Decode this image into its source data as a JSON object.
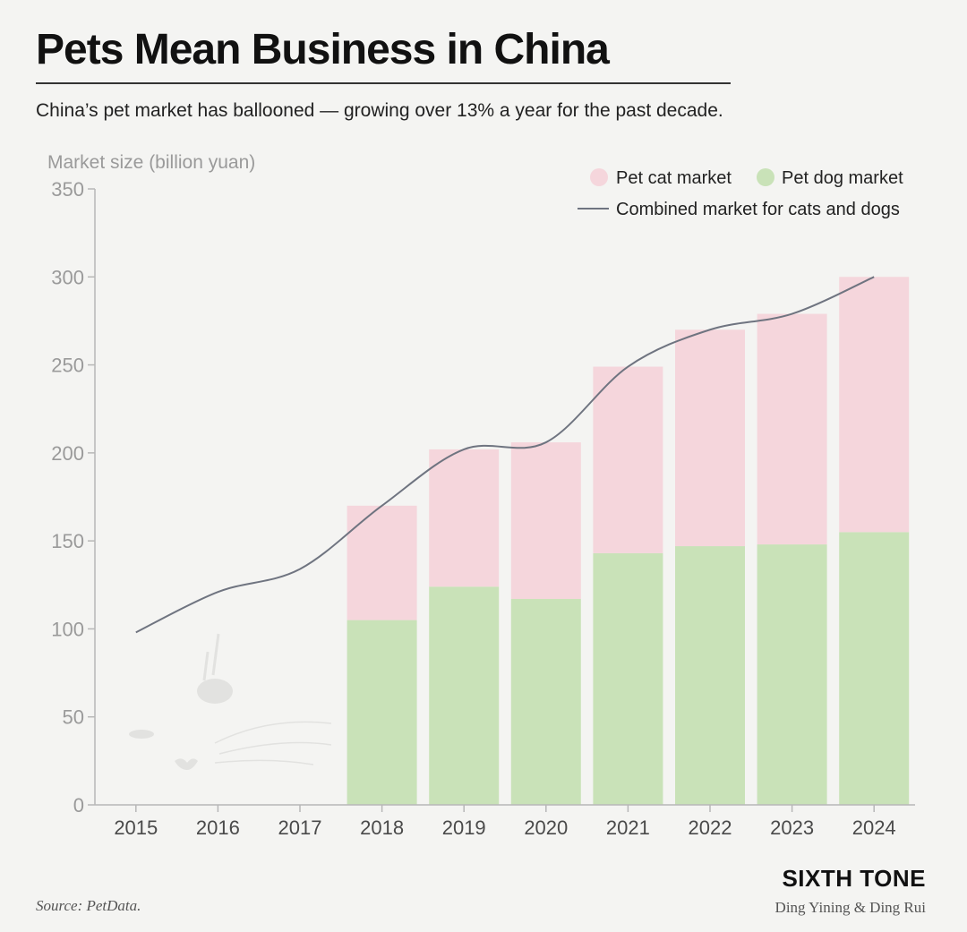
{
  "title": "Pets Mean Business in China",
  "subtitle": "China’s pet market has ballooned — growing over 13% a year for the past decade.",
  "brand": "SIXTH TONE",
  "byline": "Ding Yining & Ding Rui",
  "source": "Source: PetData.",
  "colors": {
    "cat": "#f5d6dc",
    "dog": "#c9e2b8",
    "line": "#6f7480",
    "axis": "#b7b7b7",
    "tick": "#9a9a9a",
    "xtick": "#4a4a4a"
  },
  "chart_data": {
    "type": "bar",
    "stacked": true,
    "ylabel": "Market size (billion yuan)",
    "ylim": [
      0,
      350
    ],
    "yticks": [
      "0",
      "50",
      "100",
      "150",
      "200",
      "250",
      "300",
      "350"
    ],
    "categories": [
      "2015",
      "2016",
      "2017",
      "2018",
      "2019",
      "2020",
      "2021",
      "2022",
      "2023",
      "2024"
    ],
    "series": [
      {
        "name": "Pet dog market",
        "values": [
          null,
          null,
          null,
          105,
          124,
          117,
          143,
          147,
          148,
          155
        ]
      },
      {
        "name": "Pet cat market",
        "values": [
          null,
          null,
          null,
          65,
          78,
          89,
          106,
          123,
          131,
          145
        ]
      }
    ],
    "line": {
      "name": "Combined market for cats and dogs",
      "values": [
        98,
        121,
        134,
        170,
        202,
        206,
        249,
        270,
        279,
        300
      ]
    },
    "legend": [
      "Pet cat market",
      "Pet dog market",
      "Combined market for cats and dogs"
    ],
    "legend_position": "top-right",
    "grid": false
  }
}
